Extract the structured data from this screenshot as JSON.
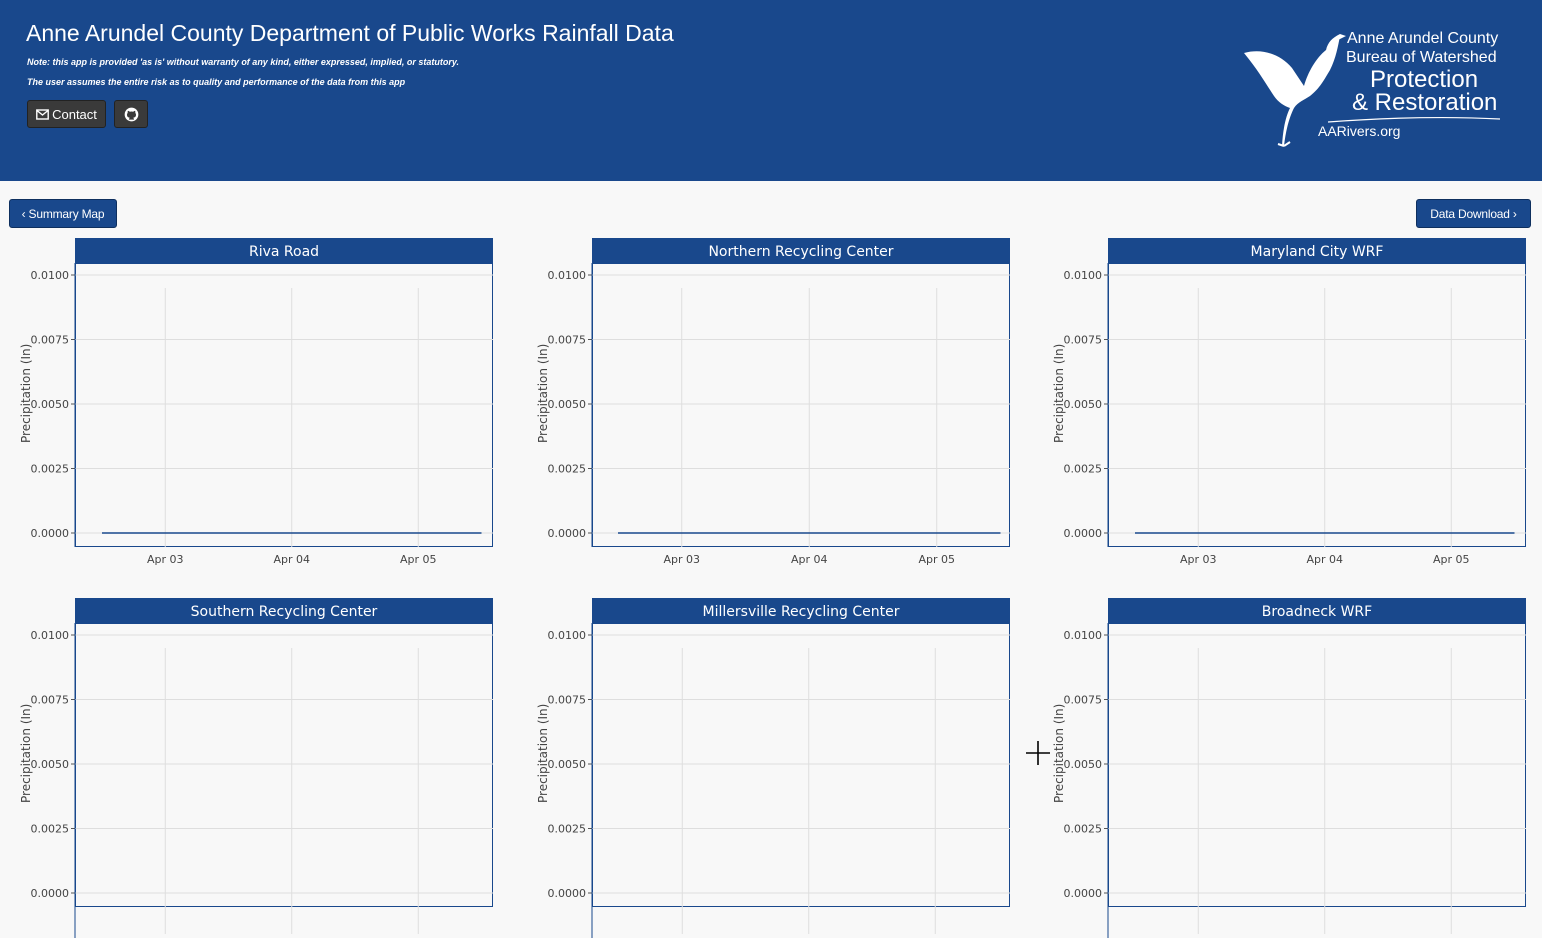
{
  "header": {
    "title": "Anne Arundel County Department of Public Works Rainfall Data",
    "note_line1": "Note: this app is provided 'as is' without warranty of any kind, either expressed, implied, or statutory.",
    "note_line2": "The user assumes the entire risk as to quality and performance of the data from this app",
    "contact_label": "Contact",
    "contact_icon": "envelope-icon",
    "github_icon": "github-icon",
    "logo": {
      "line1": "Anne Arundel County",
      "line2": "Bureau of Watershed",
      "line3": "Protection",
      "line4": "& Restoration",
      "line5": "AARivers.org"
    },
    "colors": {
      "brand_blue": "#19488c",
      "button_dark": "#3a3a3a"
    }
  },
  "nav": {
    "summary_label": "‹ Summary Map",
    "download_label": "Data Download ›"
  },
  "charts": {
    "y_axis_title": "Precipitation (In)",
    "y_ticks": [
      "0.0100",
      "0.0075",
      "0.0050",
      "0.0025",
      "0.0000"
    ],
    "x_ticks": [
      "Apr 03",
      "Apr 04",
      "Apr 05"
    ]
  },
  "chart_data": [
    {
      "type": "line",
      "title": "Riva Road",
      "ylabel": "Precipitation (In)",
      "ylim": [
        0,
        0.01
      ],
      "x": [
        "Apr 02 12:00",
        "Apr 05 12:00"
      ],
      "values": [
        0,
        0
      ],
      "grid": true
    },
    {
      "type": "line",
      "title": "Northern Recycling Center",
      "ylabel": "Precipitation (In)",
      "ylim": [
        0,
        0.01
      ],
      "x": [
        "Apr 02 12:00",
        "Apr 05 12:00"
      ],
      "values": [
        0,
        0
      ],
      "grid": true
    },
    {
      "type": "line",
      "title": "Maryland City WRF",
      "ylabel": "Precipitation (In)",
      "ylim": [
        0,
        0.01
      ],
      "x": [
        "Apr 02 12:00",
        "Apr 05 12:00"
      ],
      "values": [
        0,
        0
      ],
      "grid": true
    },
    {
      "type": "line",
      "title": "Southern Recycling Center",
      "ylabel": "Precipitation (In)",
      "ylim": [
        0,
        0.01
      ],
      "x": [],
      "values": [],
      "grid": true
    },
    {
      "type": "line",
      "title": "Millersville Recycling Center",
      "ylabel": "Precipitation (In)",
      "ylim": [
        0,
        0.01
      ],
      "x": [],
      "values": [],
      "grid": true
    },
    {
      "type": "line",
      "title": "Broadneck WRF",
      "ylabel": "Precipitation (In)",
      "ylim": [
        0,
        0.01
      ],
      "x": [],
      "values": [],
      "grid": true
    }
  ]
}
